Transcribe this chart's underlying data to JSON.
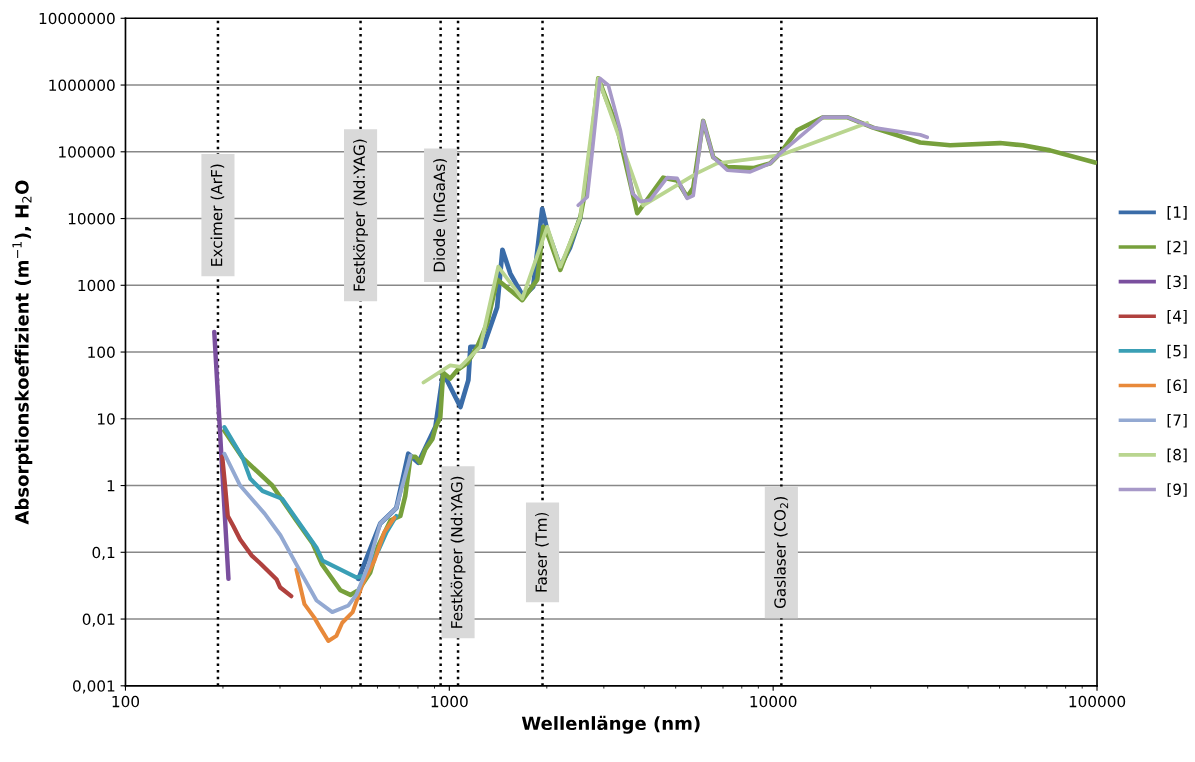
{
  "chart_data": {
    "type": "line",
    "xlabel": "Wellenlänge (nm)",
    "ylabel": "Absorptionskoeffizient (m$^{−1}$), H$_{2}$O",
    "log": "xy",
    "grid": "y",
    "legend": "right",
    "marker": "none",
    "line_style": "solid",
    "xlim": [
      100,
      100000
    ],
    "xticks": [
      100,
      1000,
      10000,
      100000
    ],
    "ylim": [
      0.001,
      10000000
    ],
    "yticks": [
      {
        "value": 0.001,
        "label": "0,001"
      },
      {
        "value": 0.01,
        "label": "0,01"
      },
      {
        "value": 0.1,
        "label": "0,1"
      },
      1,
      10,
      100,
      1000,
      10000,
      100000,
      1000000,
      10000000
    ],
    "series": [
      {
        "name": "[1]",
        "color": "#3a6ca8",
        "x": [
          524,
          612,
          686,
          747,
          802,
          906,
          957,
          1082,
          1145,
          1162,
          1274,
          1405,
          1459,
          1543,
          1691,
          1815,
          1936,
          2006,
          2201,
          2361,
          2537
        ],
        "values": [
          0.04,
          0.27,
          0.46,
          3.0,
          2.2,
          7.6,
          49,
          15,
          38,
          120,
          120,
          470,
          3400,
          1500,
          680,
          950,
          14000,
          6700,
          1900,
          3700,
          10400
        ]
      },
      {
        "name": "[2]",
        "color": "#77a03c",
        "x": [
          202,
          230,
          284,
          337,
          378,
          405,
          461,
          495,
          524,
          570,
          601,
          658,
          706,
          731,
          759,
          785,
          813,
          843,
          887,
          906,
          938,
          957,
          1006,
          1060,
          1137,
          1220,
          1309,
          1405,
          1680,
          1869,
          1950,
          2006,
          2201,
          2537,
          2667,
          2884,
          3302,
          3805,
          4575,
          5053,
          5426,
          5665,
          6081,
          6530,
          7215,
          8675,
          9790,
          10510,
          11860,
          14260,
          16910,
          20350,
          28440,
          35180,
          50200,
          59100,
          71600,
          98600
        ],
        "values": [
          6.6,
          2.6,
          1.0,
          0.3,
          0.137,
          0.065,
          0.027,
          0.023,
          0.027,
          0.05,
          0.12,
          0.3,
          0.35,
          0.7,
          2.7,
          2.7,
          2.2,
          3.5,
          5,
          7.3,
          10.6,
          49,
          40,
          54,
          69,
          120,
          270,
          1220,
          600,
          1220,
          7500,
          6000,
          1700,
          10400,
          37000,
          1260000,
          230000,
          12000,
          41000,
          37000,
          21000,
          29000,
          290000,
          83000,
          59000,
          57000,
          67000,
          95000,
          210000,
          330000,
          330000,
          230000,
          138000,
          125000,
          135000,
          125000,
          105000,
          69000
        ]
      },
      {
        "name": "[3]",
        "color": "#7a4f9e",
        "x": [
          188,
          208
        ],
        "values": [
          200,
          0.04
        ]
      },
      {
        "name": "[4]",
        "color": "#b0413e",
        "x": [
          199,
          203,
          207,
          215,
          226,
          245,
          261,
          293,
          300,
          325
        ],
        "values": [
          2.7,
          1,
          0.35,
          0.25,
          0.155,
          0.09,
          0.068,
          0.039,
          0.03,
          0.022
        ]
      },
      {
        "name": "[5]",
        "color": "#3a9fb5",
        "x": [
          202,
          230,
          243,
          265,
          305,
          389,
          406,
          516,
          547,
          600,
          640,
          686
        ],
        "values": [
          7.5,
          2.6,
          1.26,
          0.83,
          0.63,
          0.117,
          0.075,
          0.042,
          0.045,
          0.1,
          0.2,
          0.35
        ]
      },
      {
        "name": "[6]",
        "color": "#e8893a",
        "x": [
          337,
          357,
          383,
          400,
          423,
          448,
          467,
          503,
          539,
          587,
          630,
          677
        ],
        "values": [
          0.055,
          0.0167,
          0.0105,
          0.0073,
          0.0047,
          0.0056,
          0.0088,
          0.0127,
          0.033,
          0.075,
          0.2,
          0.33
        ]
      },
      {
        "name": "[7]",
        "color": "#93a9d2",
        "x": [
          202,
          226,
          269,
          301,
          337,
          389,
          435,
          488,
          516,
          562,
          612,
          686,
          759
        ],
        "values": [
          3.0,
          1.0,
          0.38,
          0.18,
          0.066,
          0.019,
          0.0127,
          0.016,
          0.023,
          0.063,
          0.27,
          0.46,
          2.8
        ]
      },
      {
        "name": "[8]",
        "color": "#b9d58f",
        "x": [
          832,
          1006,
          1082,
          1247,
          1416,
          1680,
          2006,
          2201,
          2537,
          2884,
          3970,
          5823,
          6714,
          10510,
          19500
        ],
        "values": [
          35,
          63,
          60,
          120,
          1900,
          630,
          7500,
          1900,
          10400,
          1260000,
          15700,
          48000,
          67000,
          89000,
          270000
        ]
      },
      {
        "name": "[9]",
        "color": "#a799c8",
        "x": [
          2500,
          2667,
          2760,
          2920,
          3096,
          3375,
          3677,
          3890,
          4170,
          4706,
          5053,
          5426,
          5665,
          6081,
          6530,
          7215,
          8490,
          9790,
          10510,
          14260,
          16910,
          20350,
          28440,
          29900
        ],
        "values": [
          15800,
          21000,
          95000,
          1260000,
          1000000,
          210000,
          24000,
          18000,
          19000,
          41000,
          40000,
          20000,
          22000,
          290000,
          83000,
          53000,
          50000,
          67000,
          95000,
          330000,
          330000,
          230000,
          180000,
          165000
        ]
      }
    ],
    "ref_lines": [
      {
        "axis": "x",
        "value": 193,
        "label": "Excimer (ArF)",
        "color": "#000000",
        "line_style": "dotted"
      },
      {
        "axis": "x",
        "value": 532,
        "label": "Festkörper (Nd:YAG)",
        "color": "#000000",
        "line_style": "dotted"
      },
      {
        "axis": "x",
        "value": 940,
        "label": "Diode (InGaAs)",
        "color": "#000000",
        "line_style": "dotted"
      },
      {
        "axis": "x",
        "value": 1064,
        "label": "Festkörper (Nd:YAG)",
        "color": "#000000",
        "line_style": "dotted"
      },
      {
        "axis": "x",
        "value": 1940,
        "label": "Faser (Tm)",
        "color": "#000000",
        "line_style": "dotted"
      },
      {
        "axis": "x",
        "value": 10600,
        "label": "Gaslaser (CO$_{2}$)",
        "color": "#000000",
        "line_style": "dotted"
      }
    ]
  }
}
